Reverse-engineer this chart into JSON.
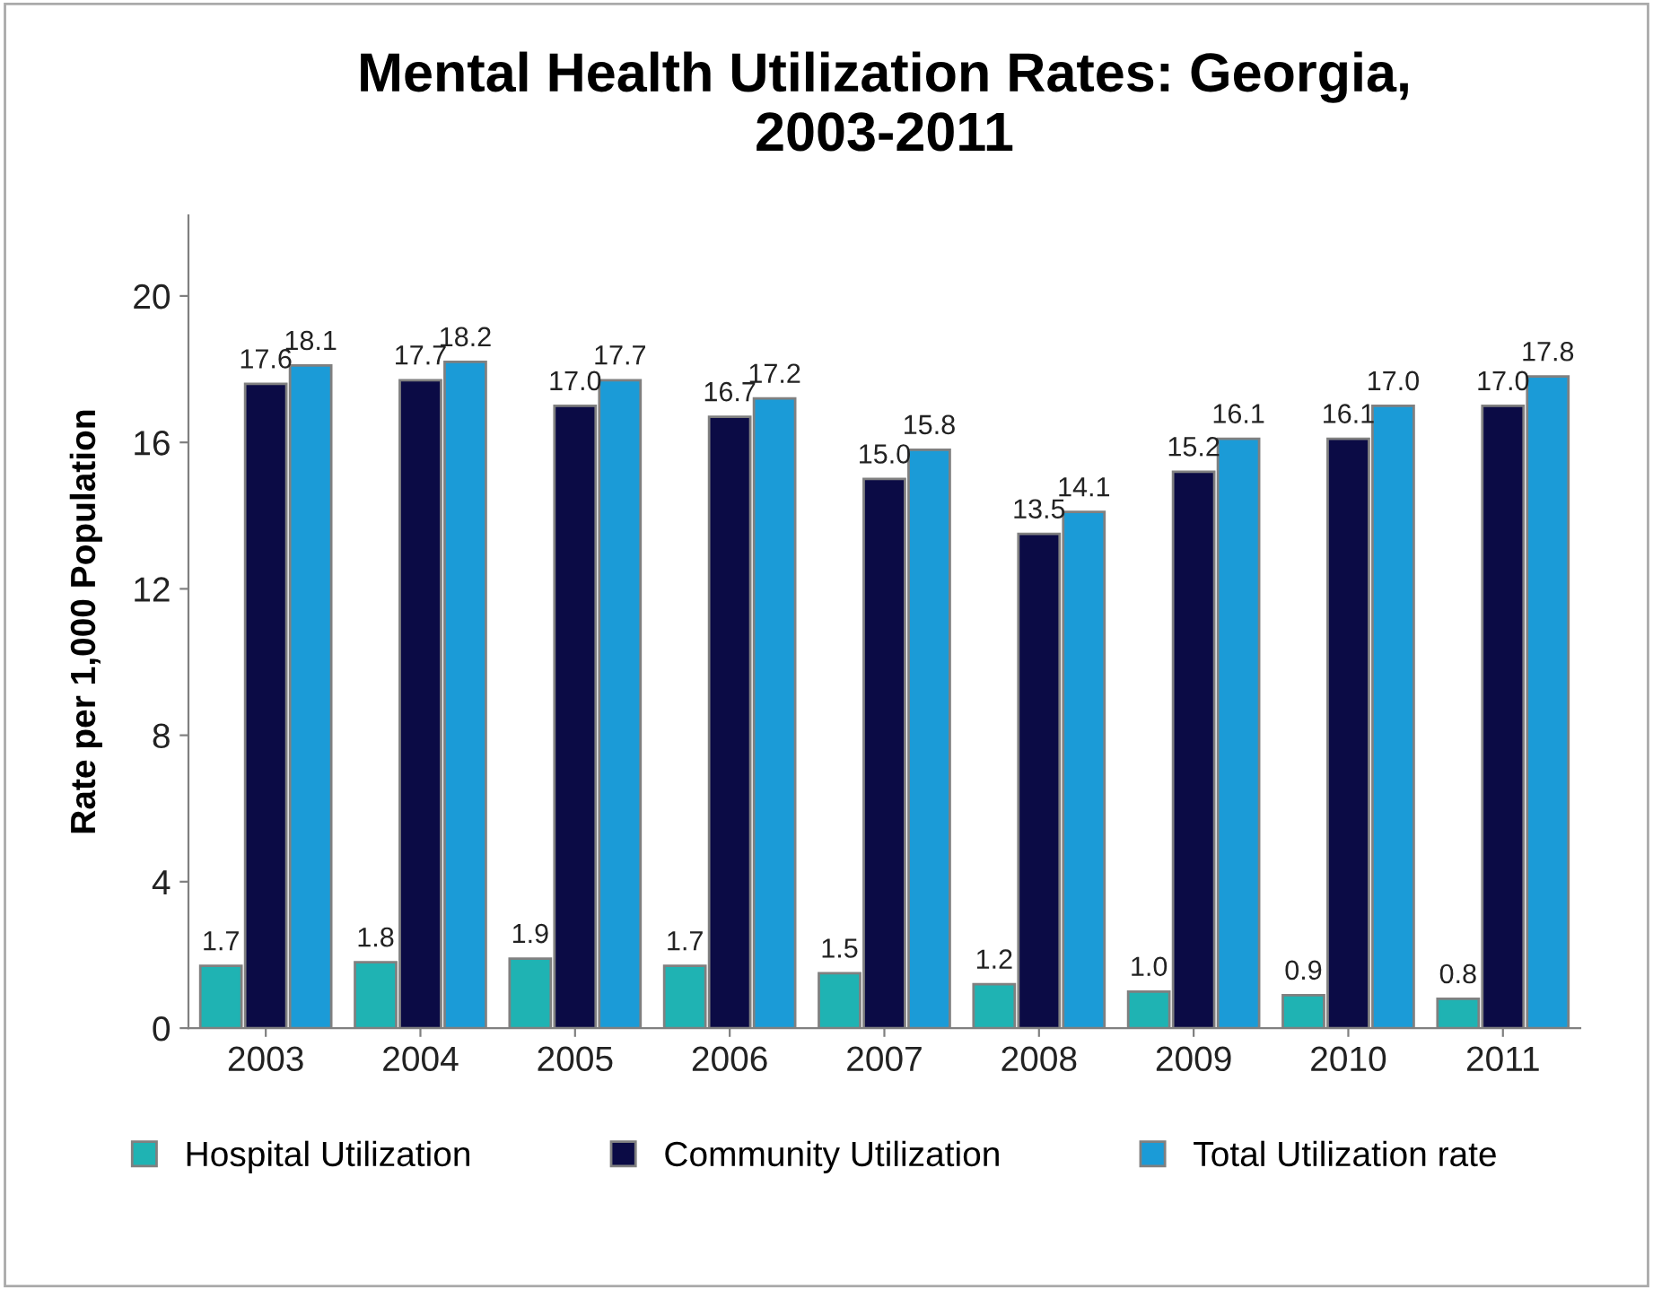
{
  "chart_data": {
    "type": "bar",
    "title": "Mental Health Utilization Rates: Georgia,\n2003-2011",
    "ylabel": "Rate per 1,000 Population",
    "categories": [
      "2003",
      "2004",
      "2005",
      "2006",
      "2007",
      "2008",
      "2009",
      "2010",
      "2011"
    ],
    "series": [
      {
        "name": "Hospital Utilization",
        "color": "#1fb3b3",
        "values": [
          1.7,
          1.8,
          1.9,
          1.7,
          1.5,
          1.2,
          1.0,
          0.9,
          0.8
        ],
        "value_labels": [
          "1.7",
          "1.8",
          "1.9",
          "1.7",
          "1.5",
          "1.2",
          "1.0",
          "0.9",
          "0.8"
        ]
      },
      {
        "name": "Community Utilization",
        "color": "#0b0b45",
        "values": [
          17.6,
          17.7,
          17.0,
          16.7,
          15.0,
          13.5,
          15.2,
          16.1,
          17.0
        ],
        "value_labels": [
          "17.6",
          "17.7",
          "17.0",
          "16.7",
          "15.0",
          "13.5",
          "15.2",
          "16.1",
          "17.0"
        ]
      },
      {
        "name": "Total Utilization rate",
        "color": "#1b9bd7",
        "values": [
          18.1,
          18.2,
          17.7,
          17.2,
          15.8,
          14.1,
          16.1,
          17.0,
          17.8
        ],
        "value_labels": [
          "18.1",
          "18.2",
          "17.7",
          "17.2",
          "15.8",
          "14.1",
          "16.1",
          "17.0",
          "17.8"
        ]
      }
    ],
    "ylim": [
      0,
      22.2
    ],
    "yticks": [
      0,
      4,
      8,
      12,
      16,
      20
    ],
    "grid": false,
    "legend": "bottom"
  }
}
